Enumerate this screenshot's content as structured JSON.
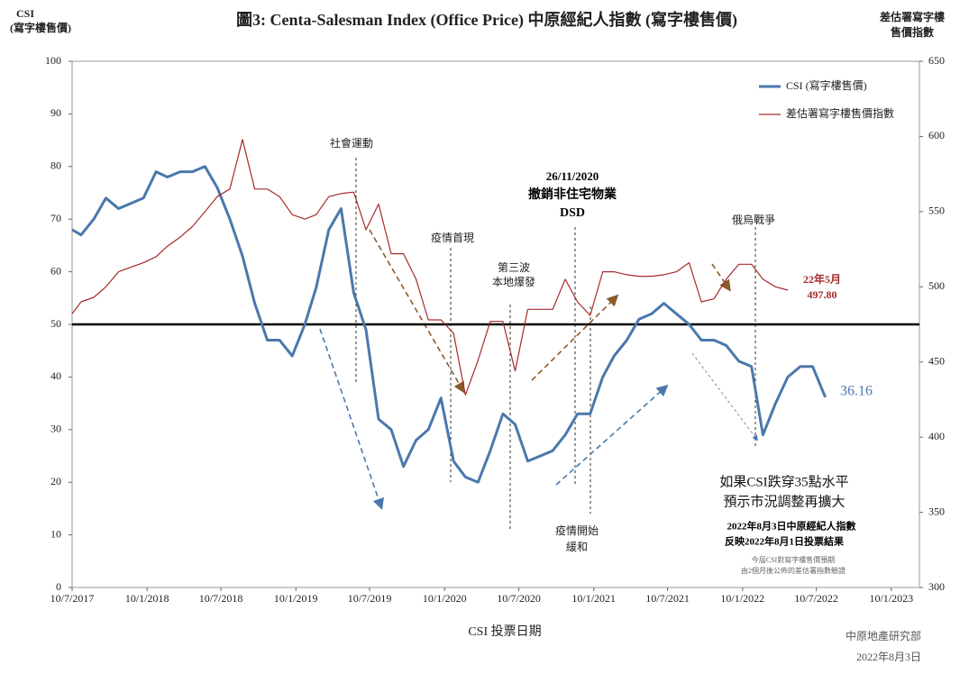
{
  "chart_data": {
    "type": "line",
    "title": "圖3: Centa-Salesman Index (Office Price)   中原經紀人指數 (寫字樓售價)",
    "y_label": [
      "CSI",
      "(寫字樓售價)"
    ],
    "y2_label": [
      "差估署寫字樓",
      "售價指數"
    ],
    "x_label": "CSI 投票日期",
    "xlim": [
      "10/7/2017",
      "20/3/2023"
    ],
    "xticks": [
      "10/7/2017",
      "10/1/2018",
      "10/7/2018",
      "10/1/2019",
      "10/7/2019",
      "10/1/2020",
      "10/7/2020",
      "10/1/2021",
      "10/7/2021",
      "10/1/2022",
      "10/7/2022",
      "10/1/2023"
    ],
    "ylim": [
      0,
      100
    ],
    "yticks": [
      0,
      10,
      20,
      30,
      40,
      50,
      60,
      70,
      80,
      90,
      100
    ],
    "y2lim": [
      300,
      650
    ],
    "y2ticks": [
      300,
      350,
      400,
      450,
      500,
      550,
      600,
      650
    ],
    "hline": 50,
    "legend": "upper right",
    "series": [
      {
        "name": "CSI (寫字樓售價)",
        "color": "#4a78ab",
        "x": [
          "10/7/2017",
          "1/8/2017",
          "1/9/2017",
          "1/10/2017",
          "1/11/2017",
          "1/12/2017",
          "1/1/2018",
          "1/2/2018",
          "1/3/2018",
          "1/4/2018",
          "1/5/2018",
          "1/6/2018",
          "1/7/2018",
          "1/8/2018",
          "1/9/2018",
          "1/10/2018",
          "1/11/2018",
          "1/12/2018",
          "1/1/2019",
          "1/2/2019",
          "1/3/2019",
          "1/4/2019",
          "1/5/2019",
          "1/6/2019",
          "1/7/2019",
          "1/8/2019",
          "1/9/2019",
          "1/10/2019",
          "1/11/2019",
          "1/12/2019",
          "1/1/2020",
          "1/2/2020",
          "1/3/2020",
          "1/4/2020",
          "1/5/2020",
          "1/6/2020",
          "1/7/2020",
          "1/8/2020",
          "1/9/2020",
          "1/10/2020",
          "1/11/2020",
          "1/12/2020",
          "1/1/2021",
          "1/2/2021",
          "1/3/2021",
          "1/4/2021",
          "1/5/2021",
          "1/6/2021",
          "1/7/2021",
          "1/8/2021",
          "1/9/2021",
          "1/10/2021",
          "1/11/2021",
          "1/12/2021",
          "1/1/2022",
          "1/2/2022",
          "1/3/2022",
          "1/4/2022",
          "1/5/2022",
          "1/6/2022",
          "1/7/2022",
          "1/8/2022"
        ],
        "values": [
          68,
          67,
          70,
          74,
          72,
          73,
          74,
          79,
          78,
          79,
          79,
          80,
          76,
          70,
          63,
          54,
          47,
          47,
          44,
          50,
          57,
          68,
          72,
          56,
          49,
          32,
          30,
          23,
          28,
          30,
          36,
          24,
          21,
          20,
          26,
          33,
          31,
          24,
          25,
          26,
          29,
          33,
          33,
          40,
          44,
          47,
          51,
          52,
          54,
          52,
          50,
          47,
          47,
          46,
          43,
          42,
          29,
          35,
          40,
          42,
          42,
          36.16
        ]
      },
      {
        "name": "差估署寫字樓售價指數",
        "color": "#a52a2a",
        "axis": "y2",
        "x": [
          "10/7/2017",
          "1/8/2017",
          "1/9/2017",
          "1/10/2017",
          "1/11/2017",
          "1/12/2017",
          "1/1/2018",
          "1/2/2018",
          "1/3/2018",
          "1/4/2018",
          "1/5/2018",
          "1/6/2018",
          "1/7/2018",
          "1/8/2018",
          "1/9/2018",
          "1/10/2018",
          "1/11/2018",
          "1/12/2018",
          "1/1/2019",
          "1/2/2019",
          "1/3/2019",
          "1/4/2019",
          "1/5/2019",
          "1/6/2019",
          "1/7/2019",
          "1/8/2019",
          "1/9/2019",
          "1/10/2019",
          "1/11/2019",
          "1/12/2019",
          "1/1/2020",
          "1/2/2020",
          "1/3/2020",
          "1/4/2020",
          "1/5/2020",
          "1/6/2020",
          "1/7/2020",
          "1/8/2020",
          "1/9/2020",
          "1/10/2020",
          "1/11/2020",
          "1/12/2020",
          "1/1/2021",
          "1/2/2021",
          "1/3/2021",
          "1/4/2021",
          "1/5/2021",
          "1/6/2021",
          "1/7/2021",
          "1/8/2021",
          "1/9/2021",
          "1/10/2021",
          "1/11/2021",
          "1/12/2021",
          "1/1/2022",
          "1/2/2022",
          "1/3/2022",
          "1/4/2022",
          "1/5/2022"
        ],
        "values": [
          482,
          490,
          493,
          500,
          510,
          513,
          516,
          520,
          527,
          533,
          540,
          550,
          560,
          565,
          598,
          565,
          565,
          560,
          548,
          545,
          548,
          560,
          562,
          563,
          538,
          555,
          522,
          522,
          505,
          478,
          478,
          469,
          428,
          451,
          477,
          477,
          444,
          485,
          485,
          485,
          505,
          490,
          481,
          510,
          510,
          508,
          507,
          507,
          508,
          510,
          516,
          490,
          492,
          505,
          515,
          515,
          505,
          500,
          497.8
        ]
      }
    ],
    "annotations": [
      "社會運動",
      "疫情首現",
      "第三波",
      "本地爆發",
      "26/11/2020",
      "撤銷非住宅物業",
      "DSD",
      "疫情開始",
      "緩和",
      "俄烏戰爭",
      "22年5月",
      "497.80",
      "36.16",
      "如果CSI跌穿35點水平",
      "預示市況調整再擴大",
      "2022年8月3日中原經紀人指數",
      "反映2022年8月1日投票結果",
      "今屆CSI對寫字樓售價預期",
      "由2個月後公佈的差估署指數驗證",
      "中原地產研究部",
      "2022年8月3日"
    ]
  }
}
